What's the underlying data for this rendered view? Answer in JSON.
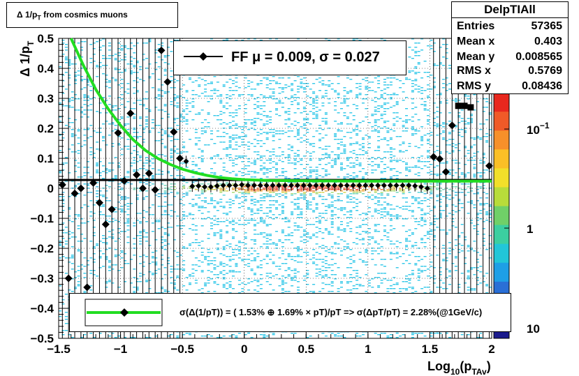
{
  "title": "Δ 1/p_T from cosmics muons",
  "stats": {
    "name": "DelpTIAll",
    "rows": [
      {
        "key": "Entries",
        "value": "57365"
      },
      {
        "key": "Mean x",
        "value": "0.403"
      },
      {
        "key": "Mean y",
        "value": "0.008565"
      },
      {
        "key": "RMS x",
        "value": "0.5769"
      },
      {
        "key": "RMS y",
        "value": "0.08436"
      }
    ]
  },
  "fit_legend": "FF μ =  0.009, σ =   0.027",
  "resolution_legend": "σ(Δ(1/pT)) = ( 1.53% ⊕  1.69% × pT)/pT => σ(ΔpT/pT) =  2.28%(@1GeV/c)",
  "colors": {
    "fit_curve": "#22dd22",
    "markers": "#000000"
  },
  "chart_data": {
    "type": "heatmap",
    "xlabel": "Log_10(p_TAv)",
    "ylabel": "Δ 1/p_T",
    "xlim": [
      -1.5,
      2
    ],
    "ylim": [
      -0.5,
      0.5
    ],
    "x_ticks": [
      "−1.5",
      "−1",
      "−0.5",
      "0",
      "0.5",
      "1",
      "1.5",
      "2"
    ],
    "y_ticks": [
      "−0.5",
      "−0.4",
      "−0.3",
      "−0.2",
      "−0.1",
      "0",
      "0.1",
      "0.2",
      "0.3",
      "0.4",
      "0.5"
    ],
    "z_scale": "log",
    "z_ticks": [
      "10^−1",
      "1",
      "10"
    ],
    "grid": true,
    "fit_curve": {
      "x": [
        -1.4,
        -1.3,
        -1.2,
        -1.1,
        -1.0,
        -0.9,
        -0.8,
        -0.7,
        -0.6,
        -0.5,
        -0.4,
        -0.3,
        -0.2,
        -0.1,
        0.0,
        0.2,
        0.5,
        1.0,
        1.5,
        2.0
      ],
      "y": [
        0.5,
        0.41,
        0.33,
        0.265,
        0.21,
        0.163,
        0.127,
        0.1,
        0.08,
        0.064,
        0.052,
        0.043,
        0.036,
        0.032,
        0.029,
        0.026,
        0.025,
        0.024,
        0.024,
        0.024
      ]
    },
    "mean_points": {
      "x": [
        -1.47,
        -1.42,
        -1.37,
        -1.32,
        -1.27,
        -1.22,
        -1.17,
        -1.12,
        -1.07,
        -1.02,
        -0.97,
        -0.92,
        -0.87,
        -0.82,
        -0.77,
        -0.72,
        -0.67,
        -0.62,
        -0.57,
        -0.52,
        -0.47,
        -0.42,
        -0.37,
        -0.32,
        -0.27,
        -0.22,
        -0.17,
        -0.12,
        -0.07,
        -0.02,
        0.03,
        0.08,
        0.13,
        0.18,
        0.23,
        0.28,
        0.33,
        0.38,
        0.43,
        0.48,
        0.53,
        0.58,
        0.63,
        0.68,
        0.73,
        0.78,
        0.83,
        0.88,
        0.93,
        0.98,
        1.03,
        1.08,
        1.13,
        1.18,
        1.23,
        1.28,
        1.33,
        1.38,
        1.43,
        1.48,
        1.53,
        1.58,
        1.63,
        1.68,
        1.73,
        1.78,
        1.83,
        1.88,
        1.93,
        1.98
      ],
      "y": [
        0.012,
        -0.3,
        -0.017,
        0.0,
        -0.33,
        0.018,
        -0.048,
        -0.12,
        -0.07,
        0.185,
        0.025,
        0.25,
        0.045,
        0.0,
        0.05,
        -0.005,
        0.46,
        0.355,
        0.188,
        0.1,
        0.09,
        0.007,
        0.008,
        0.005,
        0.005,
        0.008,
        0.01,
        0.01,
        0.01,
        0.012,
        0.01,
        0.01,
        0.01,
        0.01,
        0.01,
        0.01,
        0.01,
        0.01,
        0.01,
        0.01,
        0.01,
        0.01,
        0.01,
        0.01,
        0.01,
        0.01,
        0.01,
        0.01,
        0.01,
        0.01,
        0.01,
        0.01,
        0.01,
        0.01,
        0.01,
        0.01,
        0.01,
        0.008,
        0.005,
        0.0,
        0.105,
        0.098,
        0.055,
        0.21,
        0.275,
        0.275,
        0.27,
        0.34,
        0.37,
        0.075
      ]
    }
  }
}
